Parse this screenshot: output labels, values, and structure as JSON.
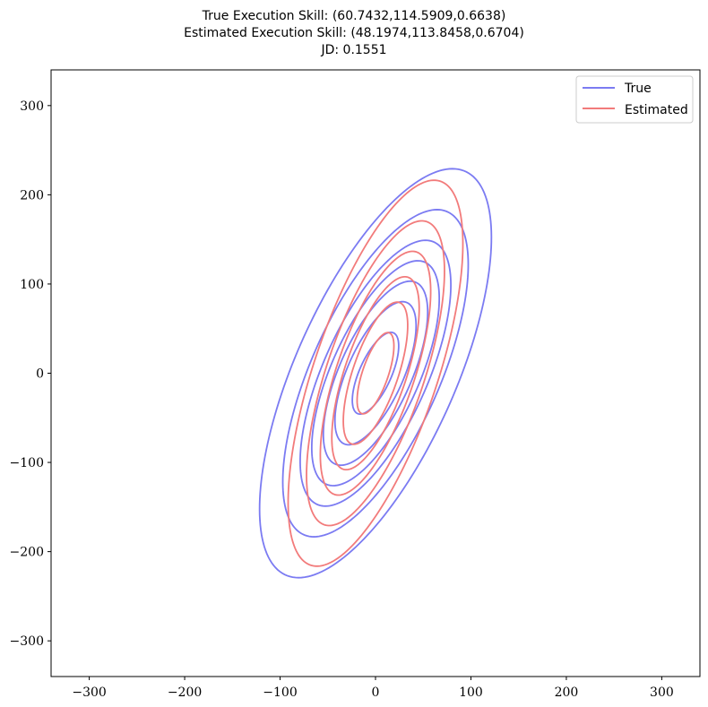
{
  "chart_data": {
    "type": "line",
    "title_lines": [
      "True Execution Skill: (60.7432,114.5909,0.6638)",
      "Estimated Execution Skill: (48.1974,113.8458,0.6704)",
      "JD: 0.1551"
    ],
    "xlabel": "",
    "ylabel": "",
    "xlim": [
      -340,
      340
    ],
    "ylim": [
      -340,
      340
    ],
    "xticks": [
      -300,
      -200,
      -100,
      0,
      100,
      200,
      300
    ],
    "yticks": [
      -300,
      -200,
      -100,
      0,
      100,
      200,
      300
    ],
    "xtick_labels": [
      "−300",
      "−200",
      "−100",
      "0",
      "100",
      "200",
      "300"
    ],
    "ytick_labels": [
      "−300",
      "−200",
      "−100",
      "0",
      "100",
      "200",
      "300"
    ],
    "grid": false,
    "legend_position": "top-right",
    "series": [
      {
        "name": "True",
        "color": "#7b7bf2",
        "sigma_x": 60.7432,
        "sigma_y": 114.5909,
        "rho": 0.6638,
        "contour_levels": [
          0.4,
          0.7,
          0.9,
          1.1,
          1.3,
          1.6,
          2.0
        ]
      },
      {
        "name": "Estimated",
        "color": "#f27b7b",
        "sigma_x": 48.1974,
        "sigma_y": 113.8458,
        "rho": 0.6704,
        "contour_levels": [
          0.4,
          0.7,
          0.95,
          1.2,
          1.5,
          1.9
        ]
      }
    ]
  }
}
